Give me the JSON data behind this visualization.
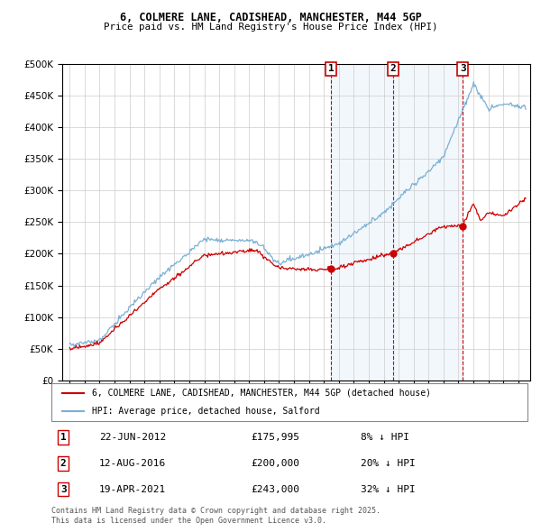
{
  "title1": "6, COLMERE LANE, CADISHEAD, MANCHESTER, M44 5GP",
  "title2": "Price paid vs. HM Land Registry's House Price Index (HPI)",
  "legend_line1": "6, COLMERE LANE, CADISHEAD, MANCHESTER, M44 5GP (detached house)",
  "legend_line2": "HPI: Average price, detached house, Salford",
  "sale_color": "#cc0000",
  "hpi_color": "#7ab0d4",
  "shade_color": "#ddeeff",
  "dashed_color": "#cc0000",
  "annotation_box_color": "#cc0000",
  "sales": [
    {
      "num": 1,
      "date": "22-JUN-2012",
      "price": 175995,
      "pct": "8% ↓ HPI",
      "year_x": 2012.47
    },
    {
      "num": 2,
      "date": "12-AUG-2016",
      "price": 200000,
      "pct": "20% ↓ HPI",
      "year_x": 2016.62
    },
    {
      "num": 3,
      "date": "19-APR-2021",
      "price": 243000,
      "pct": "32% ↓ HPI",
      "year_x": 2021.29
    }
  ],
  "footer1": "Contains HM Land Registry data © Crown copyright and database right 2025.",
  "footer2": "This data is licensed under the Open Government Licence v3.0.",
  "ylim": [
    0,
    500000
  ],
  "yticks": [
    0,
    50000,
    100000,
    150000,
    200000,
    250000,
    300000,
    350000,
    400000,
    450000,
    500000
  ],
  "xmin": 1994.5,
  "xmax": 2025.8
}
